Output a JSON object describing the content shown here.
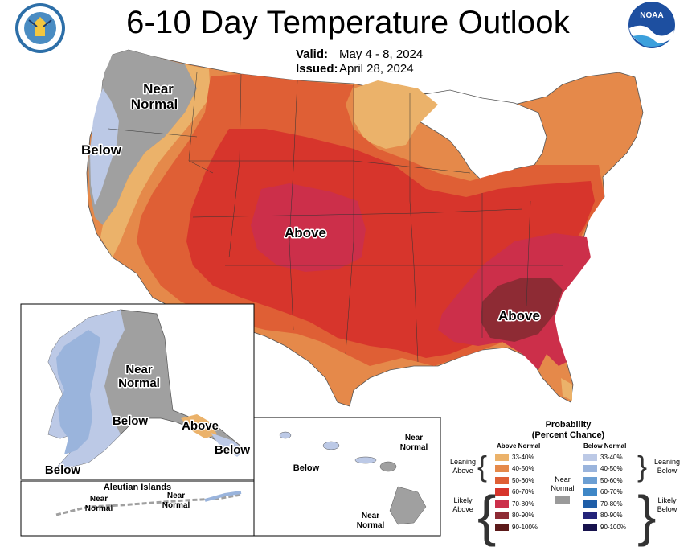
{
  "header": {
    "title": "6-10 Day Temperature Outlook",
    "valid_label": "Valid:",
    "valid_value": "May 4 - 8, 2024",
    "issued_label": "Issued:",
    "issued_value": "April 28, 2024"
  },
  "logos": {
    "left": "department-of-commerce-seal",
    "right": "noaa-logo",
    "noaa_text": "NOAA"
  },
  "map_labels": {
    "conus_near_normal_1": "Near",
    "conus_near_normal_2": "Normal",
    "conus_below": "Below",
    "conus_above_west": "Above",
    "conus_above_southeast": "Above",
    "alaska_near_normal_1": "Near",
    "alaska_near_normal_2": "Normal",
    "alaska_below_west": "Below",
    "alaska_below_south": "Below",
    "alaska_above": "Above",
    "alaska_below_panhandle": "Below",
    "aleutian_title": "Aleutian Islands",
    "aleutian_near_normal_left_1": "Near",
    "aleutian_near_normal_left_2": "Normal",
    "aleutian_near_normal_right_1": "Near",
    "aleutian_near_normal_right_2": "Normal",
    "hawaii_below": "Below",
    "hawaii_near_normal_top_1": "Near",
    "hawaii_near_normal_top_2": "Normal",
    "hawaii_near_normal_bottom_1": "Near",
    "hawaii_near_normal_bottom_2": "Normal"
  },
  "legend": {
    "title_1": "Probability",
    "title_2": "(Percent Chance)",
    "above_header": "Above Normal",
    "below_header": "Below Normal",
    "leaning_above_1": "Leaning",
    "leaning_above_2": "Above",
    "likely_above_1": "Likely",
    "likely_above_2": "Above",
    "leaning_below_1": "Leaning",
    "leaning_below_2": "Below",
    "likely_below_1": "Likely",
    "likely_below_2": "Below",
    "near_normal_1": "Near",
    "near_normal_2": "Normal",
    "above_bins": [
      {
        "label": "33-40%",
        "color": "#ebb26a"
      },
      {
        "label": "40-50%",
        "color": "#e5894a"
      },
      {
        "label": "50-60%",
        "color": "#df5f35"
      },
      {
        "label": "60-70%",
        "color": "#d7352c"
      },
      {
        "label": "70-80%",
        "color": "#cc2f4a"
      },
      {
        "label": "80-90%",
        "color": "#8e2b34"
      },
      {
        "label": "90-100%",
        "color": "#5c1a1a"
      }
    ],
    "below_bins": [
      {
        "label": "33-40%",
        "color": "#bcc9e6"
      },
      {
        "label": "40-50%",
        "color": "#9ab4dc"
      },
      {
        "label": "50-60%",
        "color": "#6c9fd3"
      },
      {
        "label": "60-70%",
        "color": "#3f87c6"
      },
      {
        "label": "70-80%",
        "color": "#1f5ea8"
      },
      {
        "label": "80-90%",
        "color": "#23237a"
      },
      {
        "label": "90-100%",
        "color": "#17124d"
      }
    ],
    "near_normal_color": "#9a9a9a"
  }
}
